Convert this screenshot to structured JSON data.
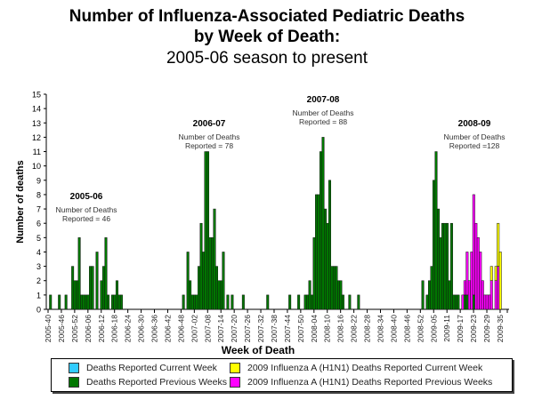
{
  "title": {
    "line1": "Number of Influenza-Associated Pediatric Deaths",
    "line2": "by Week of Death:",
    "line3": "2005-06 season to present"
  },
  "chart_data": {
    "type": "bar",
    "stacked": true,
    "xlabel": "Week of Death",
    "ylabel": "Number of deaths",
    "ylim": [
      0,
      15
    ],
    "yticks": [
      0,
      1,
      2,
      3,
      4,
      5,
      6,
      7,
      8,
      9,
      10,
      11,
      12,
      13,
      14,
      15
    ],
    "x_start_week": "2005-40",
    "num_weeks": 207,
    "xtick_labels": [
      "2005-40",
      "2005-46",
      "2005-52",
      "2006-06",
      "2006-12",
      "2006-18",
      "2006-24",
      "2006-30",
      "2006-36",
      "2006-42",
      "2006-48",
      "2007-02",
      "2007-08",
      "2007-14",
      "2007-20",
      "2007-26",
      "2007-32",
      "2007-38",
      "2007-44",
      "2007-50",
      "2008-04",
      "2008-10",
      "2008-16",
      "2008-22",
      "2008-28",
      "2008-34",
      "2008-40",
      "2008-46",
      "2008-52",
      "2009-05",
      "2009-11",
      "2009-17",
      "2009-23",
      "2009-29",
      "2009-35"
    ],
    "colors": {
      "current": "#33CCFF",
      "previous": "#007700",
      "h1n1_current": "#FFFF00",
      "h1n1_previous": "#FF00FF"
    },
    "series": [
      {
        "name": "Deaths Reported Current Week",
        "key": "current",
        "points": []
      },
      {
        "name": "Deaths Reported Previous Weeks",
        "key": "previous",
        "points": [
          [
            1,
            1
          ],
          [
            5,
            1
          ],
          [
            8,
            1
          ],
          [
            11,
            3
          ],
          [
            12,
            2
          ],
          [
            13,
            2
          ],
          [
            14,
            5
          ],
          [
            15,
            1
          ],
          [
            16,
            1
          ],
          [
            17,
            1
          ],
          [
            18,
            1
          ],
          [
            19,
            3
          ],
          [
            20,
            3
          ],
          [
            22,
            4
          ],
          [
            24,
            2
          ],
          [
            25,
            3
          ],
          [
            26,
            5
          ],
          [
            27,
            1
          ],
          [
            29,
            1
          ],
          [
            30,
            1
          ],
          [
            31,
            2
          ],
          [
            32,
            1
          ],
          [
            33,
            1
          ],
          [
            61,
            1
          ],
          [
            63,
            4
          ],
          [
            64,
            2
          ],
          [
            65,
            1
          ],
          [
            66,
            1
          ],
          [
            67,
            1
          ],
          [
            68,
            3
          ],
          [
            69,
            6
          ],
          [
            70,
            4
          ],
          [
            71,
            11
          ],
          [
            72,
            11
          ],
          [
            73,
            5
          ],
          [
            74,
            5
          ],
          [
            75,
            7
          ],
          [
            76,
            3
          ],
          [
            77,
            2
          ],
          [
            78,
            2
          ],
          [
            79,
            4
          ],
          [
            81,
            1
          ],
          [
            83,
            1
          ],
          [
            88,
            1
          ],
          [
            99,
            1
          ],
          [
            109,
            1
          ],
          [
            113,
            1
          ],
          [
            116,
            1
          ],
          [
            117,
            1
          ],
          [
            118,
            2
          ],
          [
            119,
            1
          ],
          [
            120,
            5
          ],
          [
            121,
            8
          ],
          [
            122,
            8
          ],
          [
            123,
            11
          ],
          [
            124,
            12
          ],
          [
            125,
            7
          ],
          [
            126,
            6
          ],
          [
            127,
            9
          ],
          [
            128,
            3
          ],
          [
            129,
            3
          ],
          [
            130,
            3
          ],
          [
            131,
            2
          ],
          [
            132,
            2
          ],
          [
            133,
            1
          ],
          [
            136,
            1
          ],
          [
            140,
            1
          ],
          [
            169,
            2
          ],
          [
            171,
            1
          ],
          [
            172,
            2
          ],
          [
            173,
            3
          ],
          [
            174,
            9
          ],
          [
            175,
            11
          ],
          [
            176,
            7
          ],
          [
            177,
            5
          ],
          [
            178,
            6
          ],
          [
            179,
            6
          ],
          [
            180,
            6
          ],
          [
            181,
            2
          ],
          [
            182,
            6
          ],
          [
            183,
            1
          ],
          [
            184,
            1
          ],
          [
            185,
            1
          ],
          [
            188,
            1
          ],
          [
            189,
            1
          ],
          [
            192,
            1
          ]
        ]
      },
      {
        "name": "2009 Influenza A (H1N1) Deaths Reported Current Week",
        "key": "h1n1_current",
        "points": [
          [
            200,
            1
          ],
          [
            202,
            1
          ],
          [
            203,
            3
          ],
          [
            204,
            4
          ]
        ]
      },
      {
        "name": "2009 Influenza A (H1N1) Deaths Reported Previous Weeks",
        "key": "h1n1_previous",
        "points": [
          [
            187,
            1
          ],
          [
            188,
            1
          ],
          [
            189,
            3
          ],
          [
            190,
            2
          ],
          [
            191,
            4
          ],
          [
            192,
            7
          ],
          [
            193,
            6
          ],
          [
            194,
            5
          ],
          [
            195,
            4
          ],
          [
            196,
            2
          ],
          [
            197,
            1
          ],
          [
            198,
            1
          ],
          [
            199,
            1
          ],
          [
            200,
            2
          ],
          [
            202,
            2
          ],
          [
            203,
            3
          ],
          [
            204,
            0
          ]
        ]
      }
    ],
    "annotations": [
      {
        "season": "2005-06",
        "text": "Number of Deaths",
        "text2": "Reported = 46"
      },
      {
        "season": "2006-07",
        "text": "Number of Deaths",
        "text2": "Reported = 78"
      },
      {
        "season": "2007-08",
        "text": "Number of Deaths",
        "text2": "Reported = 88"
      },
      {
        "season": "2008-09",
        "text": "Number of Deaths",
        "text2": "Reported =128"
      }
    ],
    "legend": [
      "Deaths Reported Current Week",
      "Deaths Reported Previous Weeks",
      "2009 Influenza A (H1N1) Deaths Reported Current Week",
      "2009 Influenza A (H1N1) Deaths Reported Previous Weeks"
    ],
    "legend_position": "bottom"
  }
}
